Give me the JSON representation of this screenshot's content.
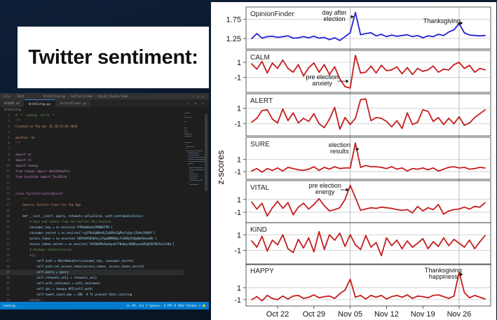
{
  "slide": {
    "title": "Twitter sentiment:"
  },
  "editor": {
    "menu": [
      "File",
      "Edit"
    ],
    "window_title": "OrchClstvp.py - twitterstream - Visual Studio Code",
    "tabs": [
      {
        "label": "README.md",
        "active": false
      },
      {
        "label": "OrchClstvp.py",
        "active": true
      },
      {
        "label": "TwitterFinder.py",
        "active": false
      }
    ],
    "breadcrumb": "OrchClstvp",
    "code_lines": [
      {
        "n": 1,
        "text": "# -*- coding: utf-8 -*-",
        "kind": "cm"
      },
      {
        "n": 2,
        "text": "\"\"\"",
        "kind": "st"
      },
      {
        "n": 3,
        "text": "Created on Thu Apr 16 20:52:49 2018",
        "kind": "st"
      },
      {
        "n": 4,
        "text": "",
        "kind": ""
      },
      {
        "n": 5,
        "text": "@author: mi",
        "kind": "st"
      },
      {
        "n": 6,
        "text": "\"\"\"",
        "kind": "st"
      },
      {
        "n": 7,
        "text": "",
        "kind": ""
      },
      {
        "n": 8,
        "text": "import os",
        "kind": "kw"
      },
      {
        "n": 9,
        "text": "import re",
        "kind": "kw"
      },
      {
        "n": 10,
        "text": "import tweepy",
        "kind": "kw"
      },
      {
        "n": 11,
        "text": "from tweepy import OAuthHandler",
        "kind": "kw"
      },
      {
        "n": 12,
        "text": "from textblob import TextBlob",
        "kind": "kw"
      },
      {
        "n": 13,
        "text": "",
        "kind": ""
      },
      {
        "n": 14,
        "text": "",
        "kind": ""
      },
      {
        "n": 15,
        "text": "class TwitterClient(object):",
        "kind": "kw"
      },
      {
        "n": 16,
        "text": "    '''",
        "kind": "st"
      },
      {
        "n": 17,
        "text": "    Generic Twitter Class for the App",
        "kind": "st"
      },
      {
        "n": 18,
        "text": "    '''",
        "kind": "st"
      },
      {
        "n": 19,
        "text": "    def __init__(self, query, retweets_only=False, with_sentiment=False):",
        "kind": ""
      },
      {
        "n": 20,
        "text": "        # keys and tokens from the Twitter Dev Console",
        "kind": "cm"
      },
      {
        "n": 21,
        "text": "        consumer_key = os.environ['ATKGmbUzmzPR8BGTP8']",
        "kind": ""
      },
      {
        "n": 22,
        "text": "        consumer_secret = os.environ['rg37KxGpBHs8jZaG89sZgPbrFyQyrjZdAv2XQ94']",
        "kind": ""
      },
      {
        "n": 23,
        "text": "        access_token = os.environ['40926958S0SxjjFqwQMNX8pc7o2BVpYS6p0mCWvmwUb']",
        "kind": ""
      },
      {
        "n": 24,
        "text": "        access_token_secret = os.environ['IAfDQVMnXpebyxbfTBdbgrU80EwxyeUVqRIB7NGfwrIiBq']",
        "kind": ""
      },
      {
        "n": 25,
        "text": "        # Attempt authentication",
        "kind": "cm"
      },
      {
        "n": 26,
        "text": "        try:",
        "kind": "kw"
      },
      {
        "n": 27,
        "text": "            self.auth = OAuthHandler(consumer_key, consumer_secret)",
        "kind": ""
      },
      {
        "n": 28,
        "text": "            self.auth.set_access_token(access_token, access_token_secret)",
        "kind": ""
      },
      {
        "n": 29,
        "text": "            self.query = query",
        "kind": "",
        "current": true
      },
      {
        "n": 30,
        "text": "            self.retweets_only = retweets_only",
        "kind": ""
      },
      {
        "n": 31,
        "text": "            self.with_sentiment = with_sentiment",
        "kind": ""
      },
      {
        "n": 32,
        "text": "            self.api = tweepy.API(self.auth)",
        "kind": ""
      },
      {
        "n": 33,
        "text": "            self.tweet_count_max = 100  # To prevent Rate Limiting",
        "kind": ""
      },
      {
        "n": 34,
        "text": "        except:",
        "kind": "kw"
      },
      {
        "n": 35,
        "text": "            print(\"Error: Authentication Failed\")",
        "kind": ""
      }
    ],
    "status_left": "Loading...",
    "status_right": "Ln 29, Col 2   Spaces: 4   UTF-8   CRLF   Python   ☺  🔔"
  },
  "chart_data": {
    "type": "line",
    "ylabel": "z-scores",
    "x_ticks": [
      "Oct 22",
      "Oct 29",
      "Nov 05",
      "Nov 12",
      "Nov 19",
      "Nov 26"
    ],
    "x_tick_index": [
      5,
      12,
      19,
      26,
      33,
      40
    ],
    "reference_lines_index": [
      19,
      40
    ],
    "panels": [
      {
        "name": "OpinionFinder",
        "color": "#2323d6",
        "yticks": [
          1.25,
          1.75
        ],
        "ylim": [
          1.05,
          2.0
        ],
        "annotations": [
          {
            "text": [
              "day after",
              "election"
            ],
            "at": 20
          },
          {
            "text": [
              "Thanksgiving"
            ],
            "at": 41
          }
        ],
        "values": [
          1.25,
          1.38,
          1.26,
          1.3,
          1.31,
          1.28,
          1.3,
          1.32,
          1.26,
          1.27,
          1.3,
          1.27,
          1.31,
          1.26,
          1.28,
          1.22,
          1.27,
          1.2,
          1.3,
          1.4,
          1.93,
          1.35,
          1.38,
          1.4,
          1.32,
          1.36,
          1.3,
          1.34,
          1.31,
          1.33,
          1.35,
          1.3,
          1.33,
          1.27,
          1.32,
          1.3,
          1.36,
          1.33,
          1.42,
          1.48,
          1.64,
          1.4,
          1.34,
          1.33,
          1.32,
          1.33
        ]
      },
      {
        "name": "CALM",
        "color": "#c41e1e",
        "yticks": [
          1,
          -1
        ],
        "ylim": [
          -2.6,
          2.2
        ],
        "annotations": [
          {
            "text": [
              "pre election",
              "anxiety"
            ],
            "at": 19
          }
        ],
        "values": [
          0.8,
          0.1,
          1.1,
          -0.4,
          0.9,
          0.2,
          1.3,
          0.2,
          -0.3,
          0.7,
          -0.8,
          0.3,
          0.9,
          -0.3,
          0.7,
          -0.6,
          0.4,
          -1.2,
          -2.2,
          -2.4,
          1.9,
          -0.4,
          -0.3,
          0.5,
          -0.4,
          0.6,
          -0.1,
          0.0,
          0.4,
          -0.5,
          0.3,
          -0.6,
          0.2,
          -0.2,
          0.0,
          0.5,
          -0.3,
          0.1,
          0.0,
          0.7,
          1.0,
          0.2,
          0.6,
          -0.3,
          0.2,
          0.0
        ]
      },
      {
        "name": "ALERT",
        "color": "#c41e1e",
        "yticks": [
          1,
          -1
        ],
        "ylim": [
          -2.2,
          2.5
        ],
        "annotations": [],
        "values": [
          -0.8,
          -0.3,
          0.7,
          0.8,
          -0.4,
          -0.9,
          0.9,
          -0.6,
          0.4,
          -0.9,
          -0.3,
          -0.7,
          0.3,
          -1.0,
          -1.5,
          -0.4,
          1.1,
          -1.7,
          -0.2,
          -1.1,
          -0.3,
          2.1,
          2.2,
          -0.6,
          -0.2,
          -0.3,
          -0.7,
          -1.4,
          -0.6,
          -1.6,
          0.4,
          -1.1,
          -0.8,
          0.8,
          0.6,
          -0.7,
          -0.2,
          -1.1,
          -0.3,
          -1.0,
          -0.1,
          -1.2,
          -0.9,
          -0.2,
          0.3,
          0.8
        ]
      },
      {
        "name": "SURE",
        "color": "#c41e1e",
        "yticks": [
          1,
          -1
        ],
        "ylim": [
          -1.8,
          4.2
        ],
        "annotations": [
          {
            "text": [
              "election",
              "results"
            ],
            "at": 21
          }
        ],
        "values": [
          -0.9,
          -0.5,
          -1.1,
          -0.5,
          -0.8,
          -0.4,
          -0.9,
          -0.3,
          -0.5,
          -0.7,
          -0.8,
          -0.6,
          -0.2,
          -0.8,
          -0.3,
          -0.6,
          -0.2,
          -0.5,
          -0.4,
          -0.4,
          3.7,
          -0.3,
          0.0,
          -0.2,
          -0.2,
          -0.3,
          -0.5,
          -0.2,
          -0.6,
          -0.4,
          -0.9,
          -0.5,
          -0.6,
          -0.4,
          -0.7,
          -0.4,
          -0.9,
          -0.6,
          -0.3,
          -0.2,
          -0.4,
          -0.3,
          -0.6,
          -0.5,
          -0.3,
          -0.4
        ]
      },
      {
        "name": "VITAL",
        "color": "#c41e1e",
        "yticks": [
          1,
          -1
        ],
        "ylim": [
          -2.2,
          3.5
        ],
        "annotations": [
          {
            "text": [
              "pre election",
              "energy"
            ],
            "at": 19
          }
        ],
        "values": [
          0.6,
          -0.5,
          0.4,
          -1.6,
          -0.3,
          0.7,
          -0.4,
          0.5,
          -1.4,
          -0.2,
          0.4,
          -0.5,
          0.2,
          1.1,
          0.0,
          -0.8,
          -0.6,
          -0.3,
          1.0,
          3.2,
          1.3,
          -0.7,
          -0.5,
          -0.3,
          -0.4,
          -0.2,
          -0.3,
          -0.4,
          -0.6,
          -0.7,
          -0.6,
          -1.1,
          -0.1,
          -0.8,
          -0.3,
          -0.6,
          0.2,
          -1.3,
          -0.8,
          -0.6,
          -0.5,
          -0.2,
          -0.5,
          -0.1,
          -0.2,
          0.5
        ]
      },
      {
        "name": "KIND",
        "color": "#c41e1e",
        "yticks": [
          1,
          -1
        ],
        "ylim": [
          -2.5,
          2.2
        ],
        "annotations": [],
        "values": [
          0.2,
          -0.6,
          0.8,
          -1.1,
          0.3,
          -0.3,
          1.0,
          -0.8,
          -1.3,
          0.4,
          -0.7,
          0.6,
          -1.2,
          1.4,
          -0.9,
          1.0,
          0.3,
          1.2,
          -0.5,
          1.0,
          -0.3,
          -0.9,
          0.9,
          -0.6,
          0.0,
          -1.7,
          0.6,
          -0.4,
          0.3,
          -0.8,
          0.2,
          -0.6,
          -0.1,
          0.5,
          -0.8,
          0.1,
          -0.5,
          0.6,
          -0.4,
          0.4,
          -0.1,
          -0.6,
          0.3,
          -0.8,
          0.1,
          0.9
        ]
      },
      {
        "name": "HAPPY",
        "color": "#c41e1e",
        "yticks": [
          1,
          -1
        ],
        "ylim": [
          -1.6,
          4.5
        ],
        "annotations": [
          {
            "text": [
              "Thanksgiving",
              "happiness"
            ],
            "at": 41
          }
        ],
        "values": [
          -1.0,
          -0.5,
          -1.2,
          -0.3,
          -0.8,
          -1.0,
          -0.4,
          -0.9,
          -0.4,
          -0.3,
          -0.8,
          -0.6,
          -0.2,
          -0.7,
          -0.5,
          -0.4,
          -0.8,
          0.0,
          0.6,
          2.4,
          -0.6,
          -0.3,
          -0.9,
          -0.3,
          -0.6,
          -0.3,
          -0.9,
          -0.5,
          -0.3,
          -0.6,
          -0.2,
          -0.8,
          -0.4,
          -0.5,
          -0.7,
          -0.3,
          -0.2,
          -0.5,
          -0.8,
          -0.4,
          3.6,
          0.2,
          -0.7,
          -0.3,
          -0.6,
          -0.9
        ]
      }
    ]
  }
}
